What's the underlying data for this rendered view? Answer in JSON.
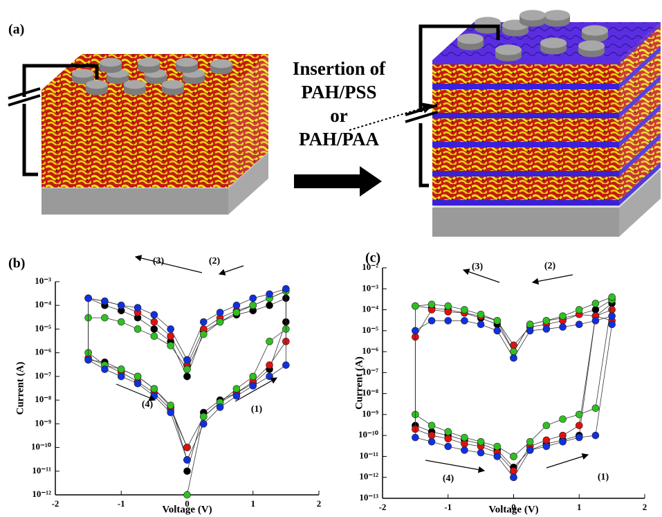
{
  "panel_a": {
    "label": "(a)",
    "insertion_text": [
      "Insertion of",
      "PAH/PSS",
      "or",
      "PAH/PAA"
    ]
  },
  "chart_data": [
    {
      "type": "scatter",
      "label": "(b)",
      "xlabel": "Voltage (V)",
      "ylabel": "Current (A)",
      "log_y": true,
      "xlim": [
        -2,
        2
      ],
      "ylim": [
        1e-12,
        0.001
      ],
      "xticks": [
        -2,
        -1,
        0,
        1,
        2
      ],
      "yticks": [
        {
          "value": 0.001,
          "label": "10⁻³"
        },
        {
          "value": 0.0001,
          "label": "10⁻⁴"
        },
        {
          "value": 1e-05,
          "label": "10⁻⁵"
        },
        {
          "value": 1e-06,
          "label": "10⁻⁶"
        },
        {
          "value": 1e-07,
          "label": "10⁻⁷"
        },
        {
          "value": 1e-08,
          "label": "10⁻⁸"
        },
        {
          "value": 1e-09,
          "label": "10⁻⁹"
        },
        {
          "value": 1e-10,
          "label": "10⁻¹⁰"
        },
        {
          "value": 1e-11,
          "label": "10⁻¹¹"
        },
        {
          "value": 1e-12,
          "label": "10⁻¹²"
        }
      ],
      "annotations": [
        "(1)",
        "(2)",
        "(3)",
        "(4)"
      ],
      "x": [
        0,
        0.25,
        0.5,
        0.75,
        1,
        1.25,
        1.5,
        1.5,
        1.25,
        1,
        0.75,
        0.5,
        0.25,
        0,
        0,
        -0.25,
        -0.5,
        -0.75,
        -1,
        -1.25,
        -1.5,
        -1.5,
        -1.25,
        -1,
        -0.75,
        -0.5,
        -0.25,
        0
      ],
      "series": [
        {
          "color": "#000000",
          "values": [
            1e-11,
            3e-09,
            1e-08,
            2e-08,
            5e-08,
            2e-07,
            2e-05,
            0.0002,
            0.0001,
            6e-05,
            4e-05,
            2e-05,
            8e-06,
            1e-07,
            1e-07,
            3e-06,
            1e-05,
            3e-05,
            6e-05,
            0.0001,
            0.0002,
            5e-07,
            4e-07,
            2e-07,
            1e-07,
            3e-08,
            5e-09,
            1e-10
          ]
        },
        {
          "color": "#e01010",
          "values": [
            1e-10,
            2e-09,
            8e-09,
            2e-08,
            6e-08,
            3e-07,
            3e-06,
            0.0004,
            0.0002,
            0.0001,
            6e-05,
            3e-05,
            1e-05,
            3e-07,
            3e-07,
            5e-06,
            2e-05,
            5e-05,
            0.0001,
            0.00015,
            0.0002,
            6e-07,
            3e-07,
            1.5e-07,
            6e-08,
            2e-08,
            4e-09,
            1e-10
          ]
        },
        {
          "color": "#30c020",
          "values": [
            1e-12,
            2e-09,
            8e-09,
            3e-08,
            1e-07,
            3e-06,
            1e-05,
            0.0004,
            0.0002,
            0.0001,
            5e-05,
            2e-05,
            6e-06,
            2e-07,
            2e-07,
            2e-06,
            5e-06,
            1e-05,
            2e-05,
            3e-05,
            3e-05,
            1e-06,
            3e-07,
            2e-07,
            1e-07,
            3e-08,
            6e-09,
            3e-11
          ]
        },
        {
          "color": "#1030e0",
          "values": [
            3e-11,
            1e-09,
            5e-09,
            1.5e-08,
            4e-08,
            1e-07,
            3e-07,
            0.0005,
            0.0003,
            0.0002,
            0.0001,
            5e-05,
            2e-05,
            5e-07,
            5e-07,
            1e-05,
            4e-05,
            8e-05,
            0.0001,
            0.00015,
            0.0002,
            5e-07,
            2e-07,
            1e-07,
            5e-08,
            1.5e-08,
            3e-09,
            3e-11
          ]
        }
      ]
    },
    {
      "type": "scatter",
      "label": "(c)",
      "xlabel": "Voltage (V)",
      "ylabel": "Current (A)",
      "log_y": true,
      "xlim": [
        -2,
        2
      ],
      "ylim": [
        1e-13,
        0.01
      ],
      "xticks": [
        -2,
        -1,
        0,
        1,
        2
      ],
      "yticks": [
        {
          "value": 0.01,
          "label": "10⁻²"
        },
        {
          "value": 0.001,
          "label": "10⁻³"
        },
        {
          "value": 0.0001,
          "label": "10⁻⁴"
        },
        {
          "value": 1e-05,
          "label": "10⁻⁵"
        },
        {
          "value": 1e-06,
          "label": "10⁻⁶"
        },
        {
          "value": 1e-07,
          "label": "10⁻⁷"
        },
        {
          "value": 1e-08,
          "label": "10⁻⁸"
        },
        {
          "value": 1e-09,
          "label": "10⁻⁹"
        },
        {
          "value": 1e-10,
          "label": "10⁻¹⁰"
        },
        {
          "value": 1e-11,
          "label": "10⁻¹¹"
        },
        {
          "value": 1e-12,
          "label": "10⁻¹²"
        },
        {
          "value": 1e-13,
          "label": "10⁻¹³"
        }
      ],
      "annotations": [
        "(1)",
        "(2)",
        "(3)",
        "(4)"
      ],
      "x": [
        0,
        0.25,
        0.5,
        0.75,
        1,
        1.25,
        1.5,
        1.5,
        1.25,
        1,
        0.75,
        0.5,
        0.25,
        0,
        0,
        -0.25,
        -0.5,
        -0.75,
        -1,
        -1.25,
        -1.5,
        -1.5,
        -1.25,
        -1,
        -0.75,
        -0.5,
        -0.25,
        0
      ],
      "series": [
        {
          "color": "#000000",
          "values": [
            3e-12,
            2e-11,
            4e-11,
            6e-11,
            1e-10,
            5e-05,
            0.0002,
            0.0003,
            0.0001,
            6e-05,
            4e-05,
            3e-05,
            2e-05,
            1e-06,
            1e-06,
            2e-05,
            4e-05,
            7e-05,
            0.0001,
            0.00012,
            0.00015,
            3e-10,
            1.5e-10,
            1e-10,
            6e-11,
            4e-11,
            2e-11,
            3e-12
          ]
        },
        {
          "color": "#e01010",
          "values": [
            2e-12,
            3e-11,
            6e-11,
            1e-10,
            3e-10,
            5e-05,
            3e-05,
            0.0001,
            5e-05,
            6e-05,
            3e-05,
            2e-05,
            1.5e-05,
            2e-06,
            2e-06,
            3e-05,
            5e-05,
            7e-05,
            8e-05,
            0.0001,
            5e-06,
            2e-10,
            1e-10,
            7e-11,
            4e-11,
            3e-11,
            1.5e-11,
            2e-12
          ]
        },
        {
          "color": "#30c020",
          "values": [
            1e-11,
            5e-11,
            3e-10,
            6e-10,
            1e-09,
            2e-09,
            0.0003,
            0.0004,
            0.0002,
            0.0001,
            5e-05,
            3e-05,
            2e-05,
            1e-06,
            1e-06,
            3e-05,
            6e-05,
            0.0001,
            0.00015,
            0.00018,
            0.00015,
            1e-09,
            3e-10,
            1.5e-10,
            8e-11,
            5e-11,
            3e-11,
            1e-11
          ]
        },
        {
          "color": "#1030e0",
          "values": [
            1e-12,
            2e-11,
            3e-11,
            5e-11,
            8e-11,
            1e-10,
            2e-05,
            5e-05,
            3e-05,
            2e-05,
            1.5e-05,
            1.2e-05,
            1e-05,
            5e-07,
            5e-07,
            1e-05,
            2e-05,
            3e-05,
            3e-05,
            3e-05,
            1e-05,
            8e-11,
            5e-11,
            3e-11,
            2e-11,
            1.5e-11,
            1e-11,
            1e-12
          ]
        }
      ]
    }
  ]
}
